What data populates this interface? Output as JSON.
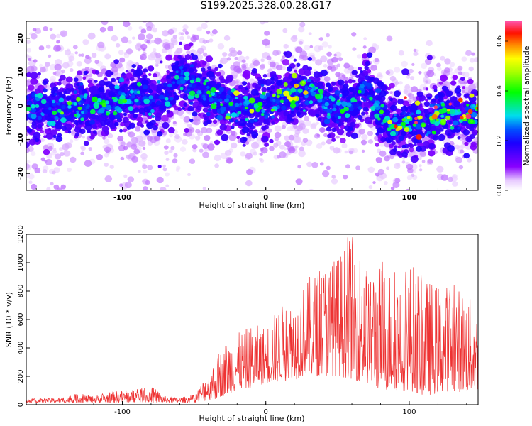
{
  "title": "S199.2025.328.00.28.G17",
  "chart_data": [
    {
      "type": "heatmap",
      "xlabel": "Height of straight line (km)",
      "ylabel": "Frequency (Hz)",
      "xlim": [
        -167,
        148
      ],
      "ylim": [
        -25,
        25
      ],
      "xticks": [
        -100,
        0,
        100
      ],
      "yticks": [
        20,
        10,
        0,
        -10,
        -20
      ],
      "colorbar": {
        "label": "Normalized spectral amplitude",
        "range": [
          0,
          0.68
        ],
        "ticks": [
          0.0,
          0.2,
          0.4,
          0.6
        ],
        "colormap": "rainbow (white-purple-blue-cyan-green-yellow-red-pink)"
      },
      "ridge_center_hz": {
        "x": [
          -160,
          -150,
          -140,
          -130,
          -120,
          -110,
          -100,
          -90,
          -80,
          -70,
          -60,
          -50,
          -40,
          -30,
          -20,
          -10,
          0,
          10,
          20,
          30,
          40,
          50,
          60,
          70,
          75,
          80,
          90,
          100,
          110,
          120,
          130,
          140,
          148
        ],
        "y": [
          -1,
          -1,
          -1,
          0,
          0,
          1,
          2,
          3,
          1,
          3,
          8,
          6,
          3,
          1,
          0,
          0,
          0,
          2,
          3,
          5,
          2,
          -1,
          -1,
          6,
          2,
          -4,
          -6,
          -6,
          -5,
          -2,
          -3,
          -3,
          -1
        ]
      },
      "peak_amplitude": {
        "x": [
          -160,
          -140,
          -120,
          -100,
          -80,
          -60,
          -40,
          -20,
          0,
          20,
          40,
          60,
          80,
          100,
          110,
          120,
          130,
          140
        ],
        "y": [
          0.3,
          0.35,
          0.35,
          0.35,
          0.25,
          0.3,
          0.35,
          0.4,
          0.35,
          0.45,
          0.35,
          0.3,
          0.35,
          0.6,
          0.55,
          0.5,
          0.6,
          0.6
        ]
      }
    },
    {
      "type": "line",
      "xlabel": "Height of straight line (km)",
      "ylabel": "SNR (10 * v/v)",
      "xlim": [
        -167,
        148
      ],
      "ylim": [
        0,
        1200
      ],
      "xticks": [
        -100,
        0,
        100
      ],
      "yticks": [
        0,
        200,
        400,
        600,
        800,
        1000,
        1200
      ],
      "color": "#ee3333",
      "series": [
        {
          "x": [
            -167,
            -150,
            -140,
            -130,
            -120,
            -110,
            -100,
            -90,
            -80,
            -70,
            -60,
            -50,
            -45,
            -40,
            -35,
            -30,
            -25,
            -20,
            -10,
            0,
            10,
            20,
            30,
            40,
            50,
            60,
            70,
            80,
            90,
            100,
            110,
            120,
            130,
            140,
            148
          ],
          "upper": [
            40,
            45,
            55,
            80,
            60,
            90,
            100,
            110,
            130,
            60,
            50,
            70,
            150,
            250,
            310,
            420,
            480,
            500,
            560,
            560,
            700,
            750,
            900,
            1000,
            1050,
            1200,
            1000,
            1000,
            950,
            1030,
            900,
            850,
            850,
            800,
            650
          ],
          "lower": [
            15,
            15,
            15,
            15,
            15,
            15,
            15,
            15,
            15,
            15,
            15,
            15,
            20,
            30,
            40,
            60,
            80,
            100,
            120,
            150,
            160,
            180,
            200,
            200,
            200,
            180,
            150,
            100,
            100,
            100,
            60,
            80,
            100,
            80,
            100
          ]
        }
      ]
    }
  ]
}
